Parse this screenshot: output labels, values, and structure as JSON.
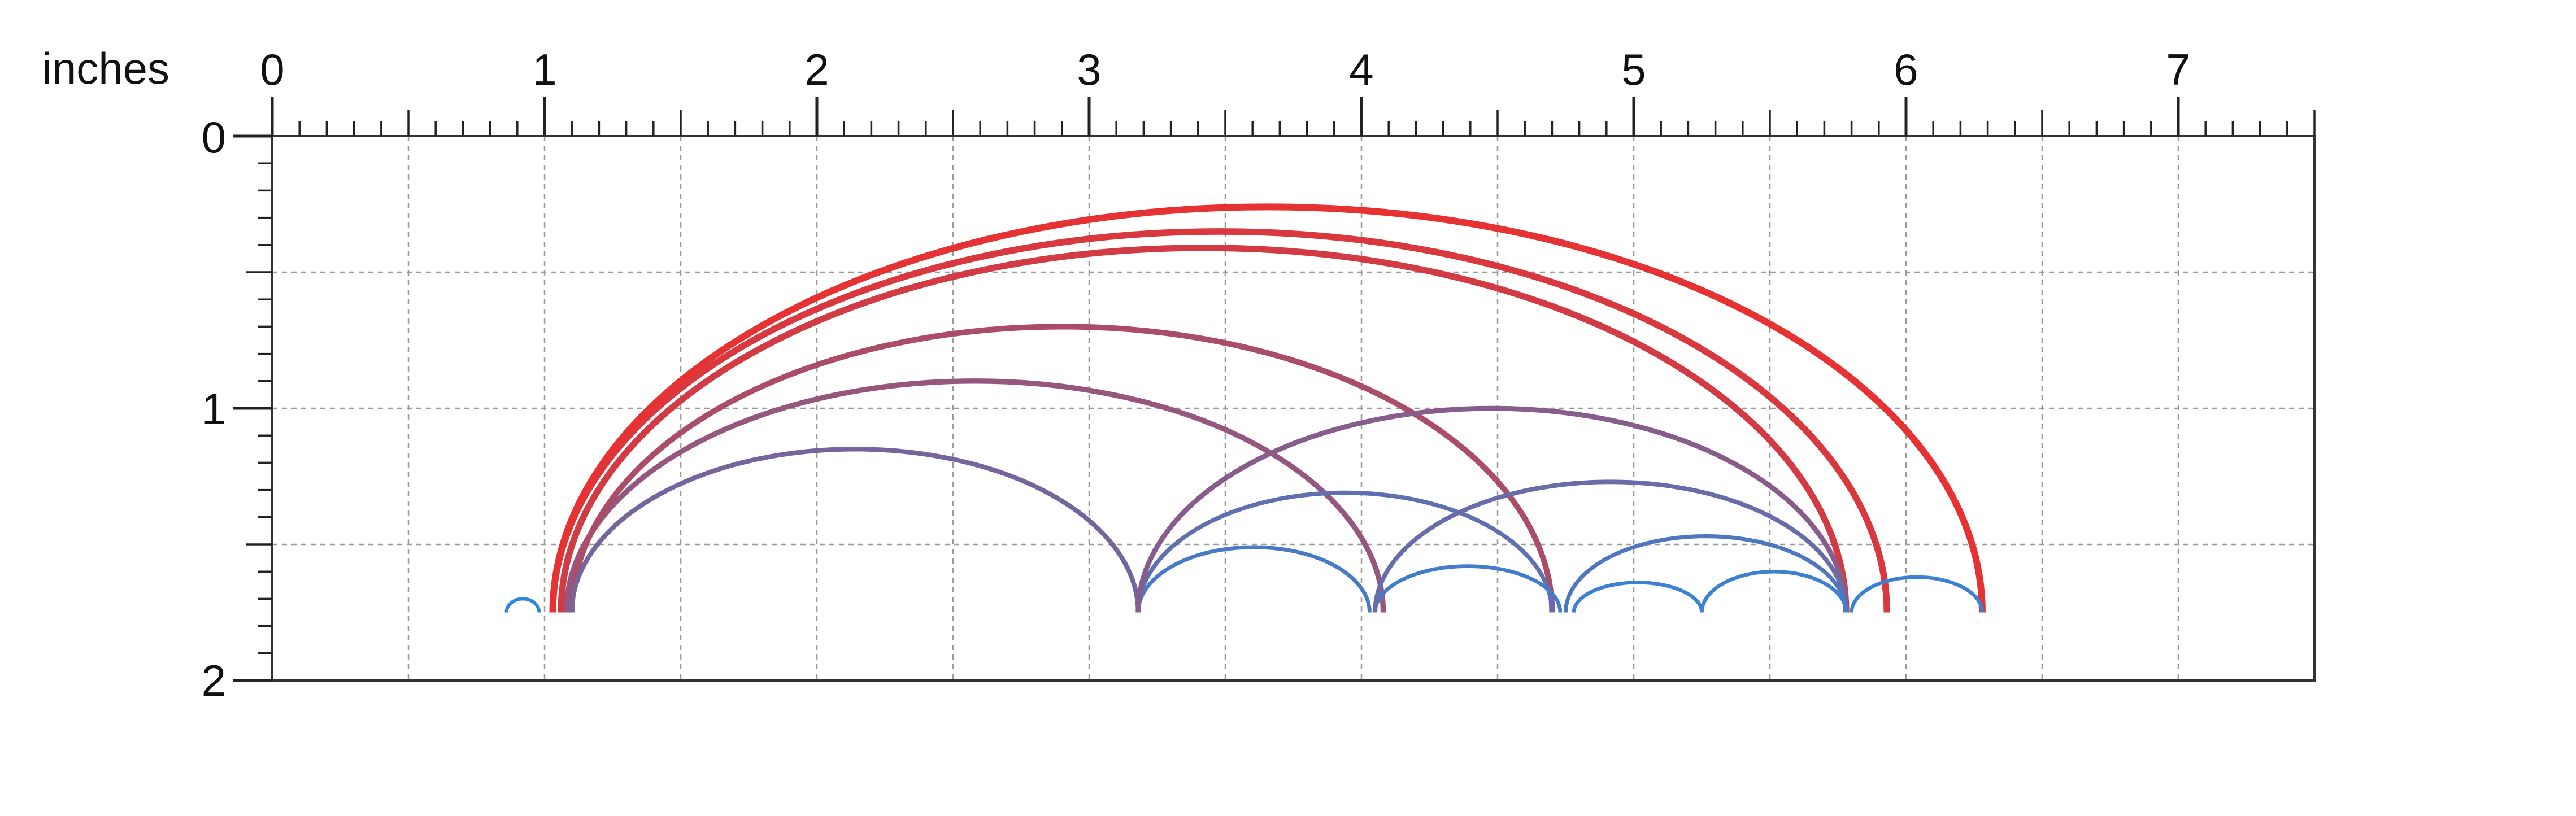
{
  "ruler": {
    "unit_label": "inches",
    "x_ticks": [
      "0",
      "1",
      "2",
      "3",
      "4",
      "5",
      "6",
      "7"
    ],
    "y_ticks": [
      "0",
      "1",
      "2"
    ]
  },
  "chart_data": {
    "type": "arc-diagram",
    "x_range": [
      0,
      7.5
    ],
    "y_range": [
      0,
      2
    ],
    "grid": true,
    "baseline_y": 1.75,
    "colors": {
      "near": "#2e86de",
      "far": "#e63232",
      "grid": "#9a9a9a",
      "frame": "#333333"
    },
    "arcs": [
      {
        "x1": 0.86,
        "x2": 0.98,
        "peak_y": 1.7
      },
      {
        "x1": 1.03,
        "x2": 5.93,
        "peak_y": 0.35
      },
      {
        "x1": 1.03,
        "x2": 6.28,
        "peak_y": 0.26
      },
      {
        "x1": 1.06,
        "x2": 5.78,
        "peak_y": 0.41
      },
      {
        "x1": 1.08,
        "x2": 4.08,
        "peak_y": 0.9
      },
      {
        "x1": 1.1,
        "x2": 4.7,
        "peak_y": 0.7
      },
      {
        "x1": 1.1,
        "x2": 3.18,
        "peak_y": 1.15
      },
      {
        "x1": 3.18,
        "x2": 4.03,
        "peak_y": 1.51
      },
      {
        "x1": 3.18,
        "x2": 4.7,
        "peak_y": 1.31
      },
      {
        "x1": 3.18,
        "x2": 5.78,
        "peak_y": 1.0
      },
      {
        "x1": 4.05,
        "x2": 4.73,
        "peak_y": 1.58
      },
      {
        "x1": 4.05,
        "x2": 5.78,
        "peak_y": 1.27
      },
      {
        "x1": 4.75,
        "x2": 5.78,
        "peak_y": 1.47
      },
      {
        "x1": 4.78,
        "x2": 5.25,
        "peak_y": 1.64
      },
      {
        "x1": 5.25,
        "x2": 5.78,
        "peak_y": 1.6
      },
      {
        "x1": 5.8,
        "x2": 6.28,
        "peak_y": 1.62
      }
    ]
  }
}
